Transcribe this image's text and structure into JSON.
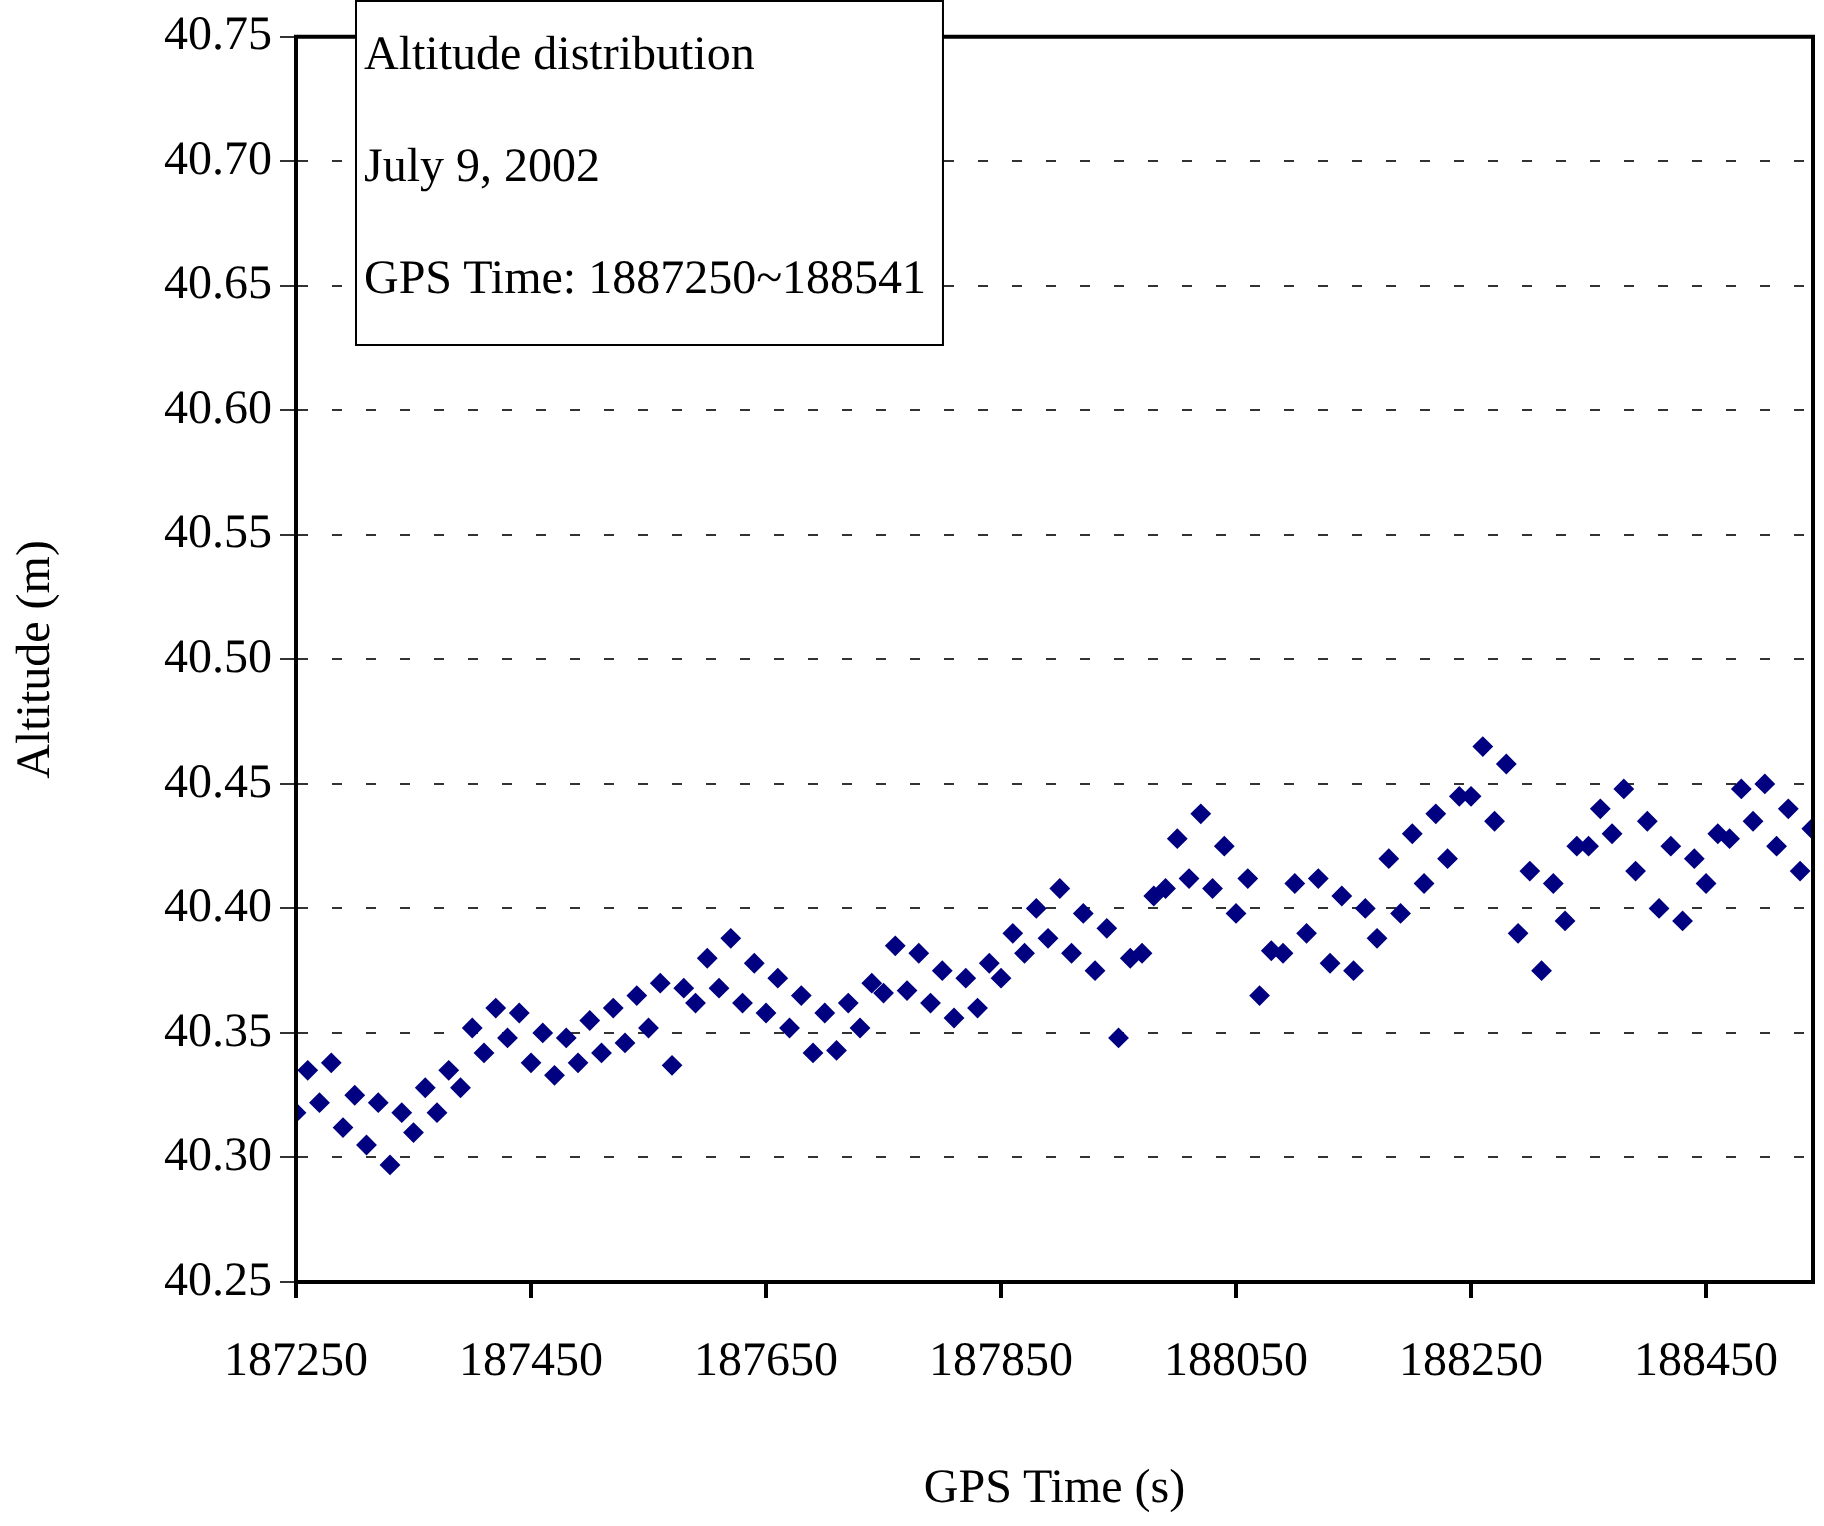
{
  "chart_data": {
    "type": "scatter",
    "xlabel": "GPS Time (s)",
    "ylabel": "Altitude (m)",
    "annotations": [
      "Altitude distribution",
      "July 9, 2002",
      "GPS Time: 1887250~188541"
    ],
    "xlim": [
      187250,
      188541
    ],
    "xticks": [
      187250,
      187450,
      187650,
      187850,
      188050,
      188250,
      188450
    ],
    "ylim": [
      40.25,
      40.75
    ],
    "yticks": [
      {
        "value": 40.25,
        "label": "40.25"
      },
      {
        "value": 40.3,
        "label": "40.30"
      },
      {
        "value": 40.35,
        "label": "40.35"
      },
      {
        "value": 40.4,
        "label": "40.40"
      },
      {
        "value": 40.45,
        "label": "40.45"
      },
      {
        "value": 40.5,
        "label": "40.50"
      },
      {
        "value": 40.55,
        "label": "40.55"
      },
      {
        "value": 40.6,
        "label": "40.60"
      },
      {
        "value": 40.65,
        "label": "40.65"
      },
      {
        "value": 40.7,
        "label": "40.70"
      },
      {
        "value": 40.75,
        "label": "40.75"
      }
    ],
    "grid": "y",
    "legend": false,
    "marker": "diamond",
    "series": [
      {
        "color": "#000080",
        "x": [
          187250,
          187260,
          187270,
          187280,
          187290,
          187300,
          187310,
          187320,
          187330,
          187340,
          187350,
          187360,
          187370,
          187380,
          187390,
          187400,
          187410,
          187420,
          187430,
          187440,
          187450,
          187460,
          187470,
          187480,
          187490,
          187500,
          187510,
          187520,
          187530,
          187540,
          187550,
          187560,
          187570,
          187580,
          187590,
          187600,
          187610,
          187620,
          187630,
          187640,
          187650,
          187660,
          187670,
          187680,
          187690,
          187700,
          187710,
          187720,
          187730,
          187740,
          187750,
          187760,
          187770,
          187780,
          187790,
          187800,
          187810,
          187820,
          187830,
          187840,
          187850,
          187860,
          187870,
          187880,
          187890,
          187900,
          187910,
          187920,
          187930,
          187940,
          187950,
          187960,
          187970,
          187980,
          187990,
          188000,
          188010,
          188020,
          188030,
          188040,
          188050,
          188060,
          188070,
          188080,
          188090,
          188100,
          188110,
          188120,
          188130,
          188140,
          188150,
          188160,
          188170,
          188180,
          188190,
          188200,
          188210,
          188220,
          188230,
          188240,
          188250,
          188260,
          188270,
          188280,
          188290,
          188300,
          188310,
          188320,
          188330,
          188340,
          188350,
          188360,
          188370,
          188380,
          188390,
          188400,
          188410,
          188420,
          188430,
          188440,
          188450,
          188460,
          188470,
          188480,
          188490,
          188500,
          188510,
          188520,
          188530,
          188540
        ],
        "values": [
          40.318,
          40.335,
          40.322,
          40.338,
          40.312,
          40.325,
          40.305,
          40.322,
          40.297,
          40.318,
          40.31,
          40.328,
          40.318,
          40.335,
          40.328,
          40.352,
          40.342,
          40.36,
          40.348,
          40.358,
          40.338,
          40.35,
          40.333,
          40.348,
          40.338,
          40.355,
          40.342,
          40.36,
          40.346,
          40.365,
          40.352,
          40.37,
          40.337,
          40.368,
          40.362,
          40.38,
          40.368,
          40.388,
          40.362,
          40.378,
          40.358,
          40.372,
          40.352,
          40.365,
          40.342,
          40.358,
          40.343,
          40.362,
          40.352,
          40.37,
          40.366,
          40.385,
          40.367,
          40.382,
          40.362,
          40.375,
          40.356,
          40.372,
          40.36,
          40.378,
          40.372,
          40.39,
          40.382,
          40.4,
          40.388,
          40.408,
          40.382,
          40.398,
          40.375,
          40.392,
          40.348,
          40.38,
          40.382,
          40.405,
          40.408,
          40.428,
          40.412,
          40.438,
          40.408,
          40.425,
          40.398,
          40.412,
          40.365,
          40.383,
          40.382,
          40.41,
          40.39,
          40.412,
          40.378,
          40.405,
          40.375,
          40.4,
          40.388,
          40.42,
          40.398,
          40.43,
          40.41,
          40.438,
          40.42,
          40.445,
          40.445,
          40.465,
          40.435,
          40.458,
          40.39,
          40.415,
          40.375,
          40.41,
          40.395,
          40.425,
          40.425,
          40.44,
          40.43,
          40.448,
          40.415,
          40.435,
          40.4,
          40.425,
          40.395,
          40.42,
          40.41,
          40.43,
          40.428,
          40.448,
          40.435,
          40.45,
          40.425,
          40.44,
          40.415,
          40.432
        ]
      }
    ]
  }
}
